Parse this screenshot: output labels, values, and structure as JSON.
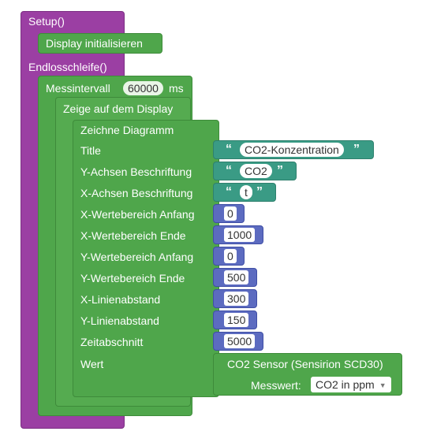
{
  "setup": {
    "label": "Setup()"
  },
  "display_init": {
    "label": "Display initialisieren"
  },
  "loop": {
    "label": "Endlosschleife()"
  },
  "interval": {
    "label": "Messintervall",
    "value": "60000",
    "unit": "ms"
  },
  "show": {
    "label": "Zeige auf dem Display"
  },
  "diagram": {
    "label": "Zeichne Diagramm",
    "fields": [
      {
        "label": "Title",
        "value": "CO2-Konzentration"
      },
      {
        "label": "Y-Achsen Beschriftung",
        "value": "CO2"
      },
      {
        "label": "X-Achsen Beschriftung",
        "value": "t"
      },
      {
        "label": "X-Wertebereich Anfang",
        "value": "0"
      },
      {
        "label": "X-Wertebereich Ende",
        "value": "1000"
      },
      {
        "label": "Y-Wertebereich Anfang",
        "value": "0"
      },
      {
        "label": "Y-Wertebereich Ende",
        "value": "500"
      },
      {
        "label": "X-Linienabstand",
        "value": "300"
      },
      {
        "label": "Y-Linienabstand",
        "value": "150"
      },
      {
        "label": "Zeitabschnitt",
        "value": "5000"
      },
      {
        "label": "Wert"
      }
    ]
  },
  "sensor": {
    "label": "CO2 Sensor (Sensirion SCD30)",
    "measure_label": "Messwert:",
    "measure_value": "CO2 in ppm"
  },
  "quotes": {
    "open": "“",
    "close": "”"
  },
  "colors": {
    "purple": "#9b3fa3",
    "green": "#4fa64b",
    "teal": "#3a9b85",
    "navy": "#5c6bc0"
  }
}
